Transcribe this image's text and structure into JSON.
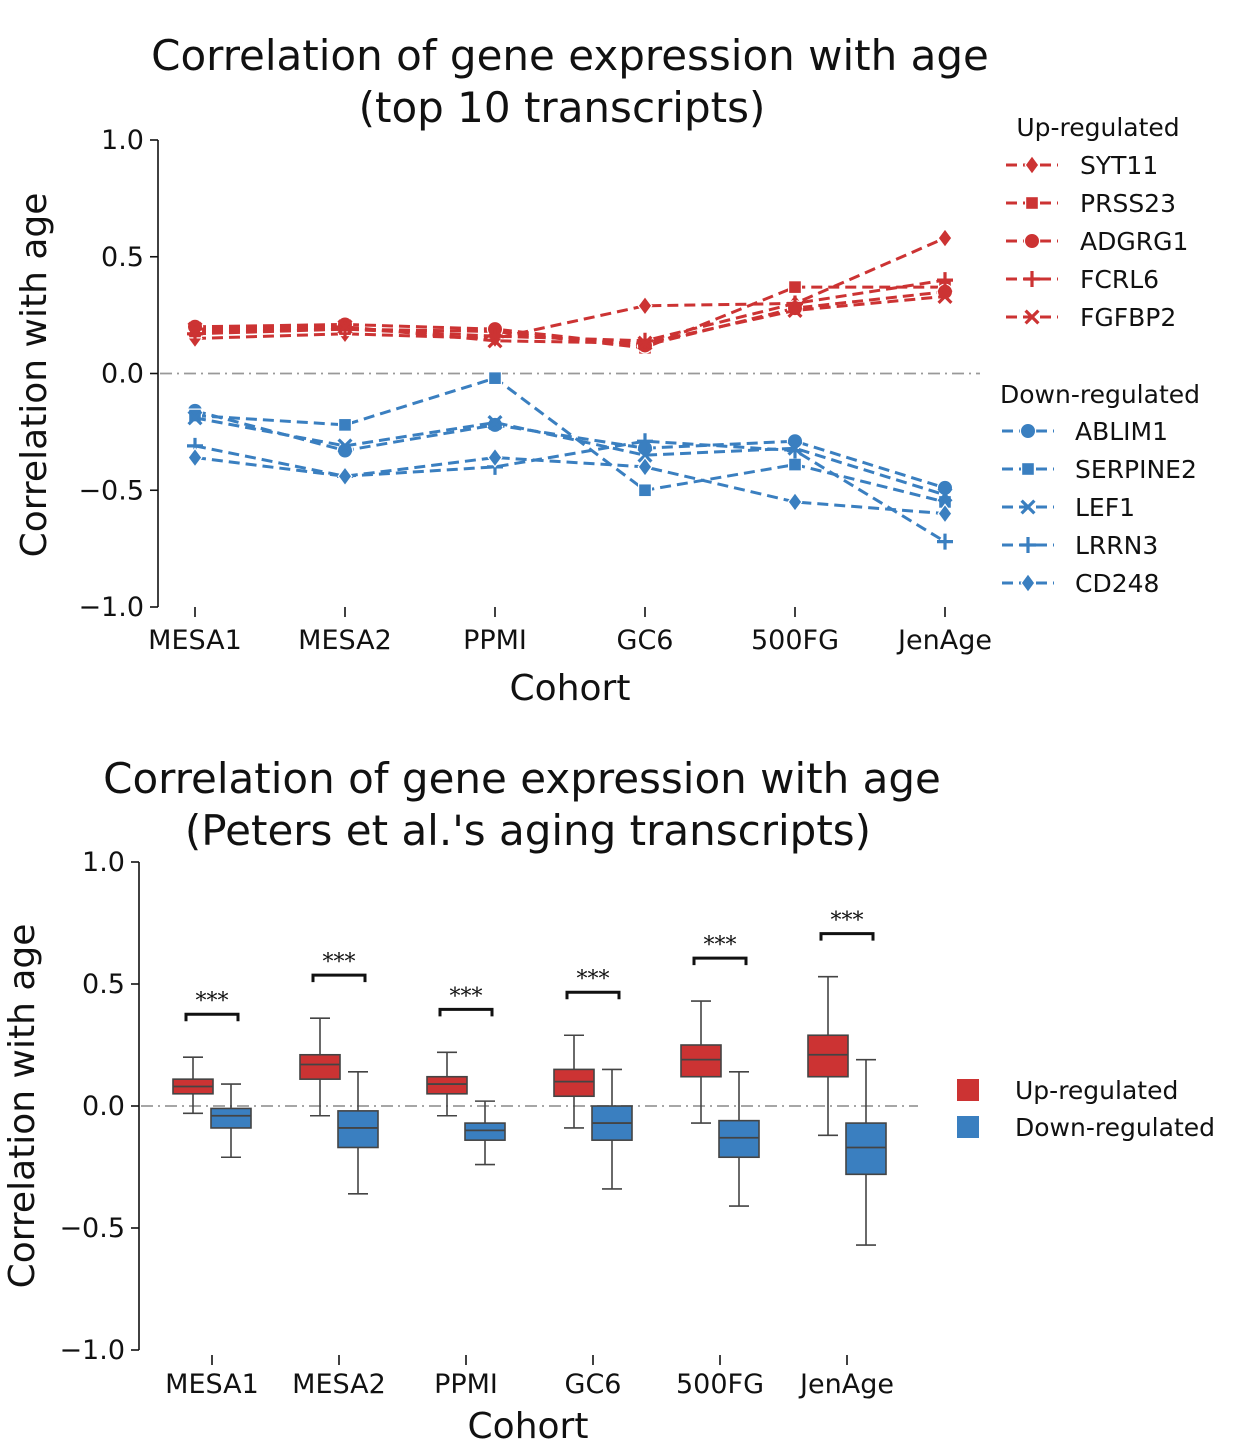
{
  "colors": {
    "up": "#cc3333",
    "down": "#3a7fc0",
    "ref": "#999999",
    "text": "#111111"
  },
  "chart_data": [
    {
      "type": "line",
      "title": "Correlation of gene expression with age",
      "subtitle": "(top 10 transcripts)",
      "xlabel": "Cohort",
      "ylabel": "Correlation with age",
      "categories": [
        "MESA1",
        "MESA2",
        "PPMI",
        "GC6",
        "500FG",
        "JenAge"
      ],
      "ylim": [
        -1.0,
        1.0
      ],
      "yticks": [
        "1.0",
        "0.5",
        "0.0",
        "−0.5",
        "−1.0"
      ],
      "ytick_values": [
        1.0,
        0.5,
        0.0,
        -0.5,
        -1.0
      ],
      "reference_line": 0.0,
      "legend_groups": [
        "Up-regulated",
        "Down-regulated"
      ],
      "series": [
        {
          "name": "SYT11",
          "group": "up",
          "marker": "diamond",
          "values": [
            0.15,
            0.17,
            0.15,
            0.29,
            0.3,
            0.58
          ]
        },
        {
          "name": "PRSS23",
          "group": "up",
          "marker": "square",
          "values": [
            0.18,
            0.19,
            0.18,
            0.11,
            0.37,
            0.37
          ]
        },
        {
          "name": "ADGRG1",
          "group": "up",
          "marker": "circle",
          "values": [
            0.2,
            0.21,
            0.19,
            0.12,
            0.28,
            0.35
          ]
        },
        {
          "name": "FCRL6",
          "group": "up",
          "marker": "plus",
          "values": [
            0.17,
            0.19,
            0.16,
            0.14,
            0.3,
            0.4
          ]
        },
        {
          "name": "FGFBP2",
          "group": "up",
          "marker": "x",
          "values": [
            0.19,
            0.2,
            0.14,
            0.13,
            0.27,
            0.33
          ]
        },
        {
          "name": "ABLIM1",
          "group": "down",
          "marker": "circle",
          "values": [
            -0.16,
            -0.33,
            -0.22,
            -0.32,
            -0.29,
            -0.49
          ]
        },
        {
          "name": "SERPINE2",
          "group": "down",
          "marker": "square",
          "values": [
            -0.18,
            -0.22,
            -0.02,
            -0.5,
            -0.39,
            -0.55
          ]
        },
        {
          "name": "LEF1",
          "group": "down",
          "marker": "x",
          "values": [
            -0.19,
            -0.31,
            -0.21,
            -0.35,
            -0.32,
            -0.52
          ]
        },
        {
          "name": "LRRN3",
          "group": "down",
          "marker": "plus",
          "values": [
            -0.31,
            -0.44,
            -0.4,
            -0.29,
            -0.33,
            -0.72
          ]
        },
        {
          "name": "CD248",
          "group": "down",
          "marker": "diamond",
          "values": [
            -0.36,
            -0.44,
            -0.36,
            -0.4,
            -0.55,
            -0.6
          ]
        }
      ]
    },
    {
      "type": "box",
      "title": "Correlation of gene expression with age",
      "subtitle": "(Peters et al.'s aging transcripts)",
      "xlabel": "Cohort",
      "ylabel": "Correlation with age",
      "categories": [
        "MESA1",
        "MESA2",
        "PPMI",
        "GC6",
        "500FG",
        "JenAge"
      ],
      "ylim": [
        -1.0,
        1.0
      ],
      "yticks": [
        "1.0",
        "0.5",
        "0.0",
        "−0.5",
        "−1.0"
      ],
      "ytick_values": [
        1.0,
        0.5,
        0.0,
        -0.5,
        -1.0
      ],
      "reference_line": 0.0,
      "significance": [
        "***",
        "***",
        "***",
        "***",
        "***",
        "***"
      ],
      "legend": [
        "Up-regulated",
        "Down-regulated"
      ],
      "groups": [
        {
          "name": "Up-regulated",
          "color_key": "up",
          "boxes": [
            {
              "whisker_low": -0.03,
              "q1": 0.05,
              "median": 0.08,
              "q3": 0.11,
              "whisker_high": 0.2
            },
            {
              "whisker_low": -0.04,
              "q1": 0.11,
              "median": 0.17,
              "q3": 0.21,
              "whisker_high": 0.36
            },
            {
              "whisker_low": -0.04,
              "q1": 0.05,
              "median": 0.09,
              "q3": 0.12,
              "whisker_high": 0.22
            },
            {
              "whisker_low": -0.09,
              "q1": 0.04,
              "median": 0.1,
              "q3": 0.15,
              "whisker_high": 0.29
            },
            {
              "whisker_low": -0.07,
              "q1": 0.12,
              "median": 0.19,
              "q3": 0.25,
              "whisker_high": 0.43
            },
            {
              "whisker_low": -0.12,
              "q1": 0.12,
              "median": 0.21,
              "q3": 0.29,
              "whisker_high": 0.53
            }
          ]
        },
        {
          "name": "Down-regulated",
          "color_key": "down",
          "boxes": [
            {
              "whisker_low": -0.21,
              "q1": -0.09,
              "median": -0.04,
              "q3": -0.01,
              "whisker_high": 0.09
            },
            {
              "whisker_low": -0.36,
              "q1": -0.17,
              "median": -0.09,
              "q3": -0.02,
              "whisker_high": 0.14
            },
            {
              "whisker_low": -0.24,
              "q1": -0.14,
              "median": -0.1,
              "q3": -0.07,
              "whisker_high": 0.02
            },
            {
              "whisker_low": -0.34,
              "q1": -0.14,
              "median": -0.07,
              "q3": 0.0,
              "whisker_high": 0.15
            },
            {
              "whisker_low": -0.41,
              "q1": -0.21,
              "median": -0.13,
              "q3": -0.06,
              "whisker_high": 0.14
            },
            {
              "whisker_low": -0.57,
              "q1": -0.28,
              "median": -0.17,
              "q3": -0.07,
              "whisker_high": 0.19
            }
          ]
        }
      ]
    }
  ]
}
